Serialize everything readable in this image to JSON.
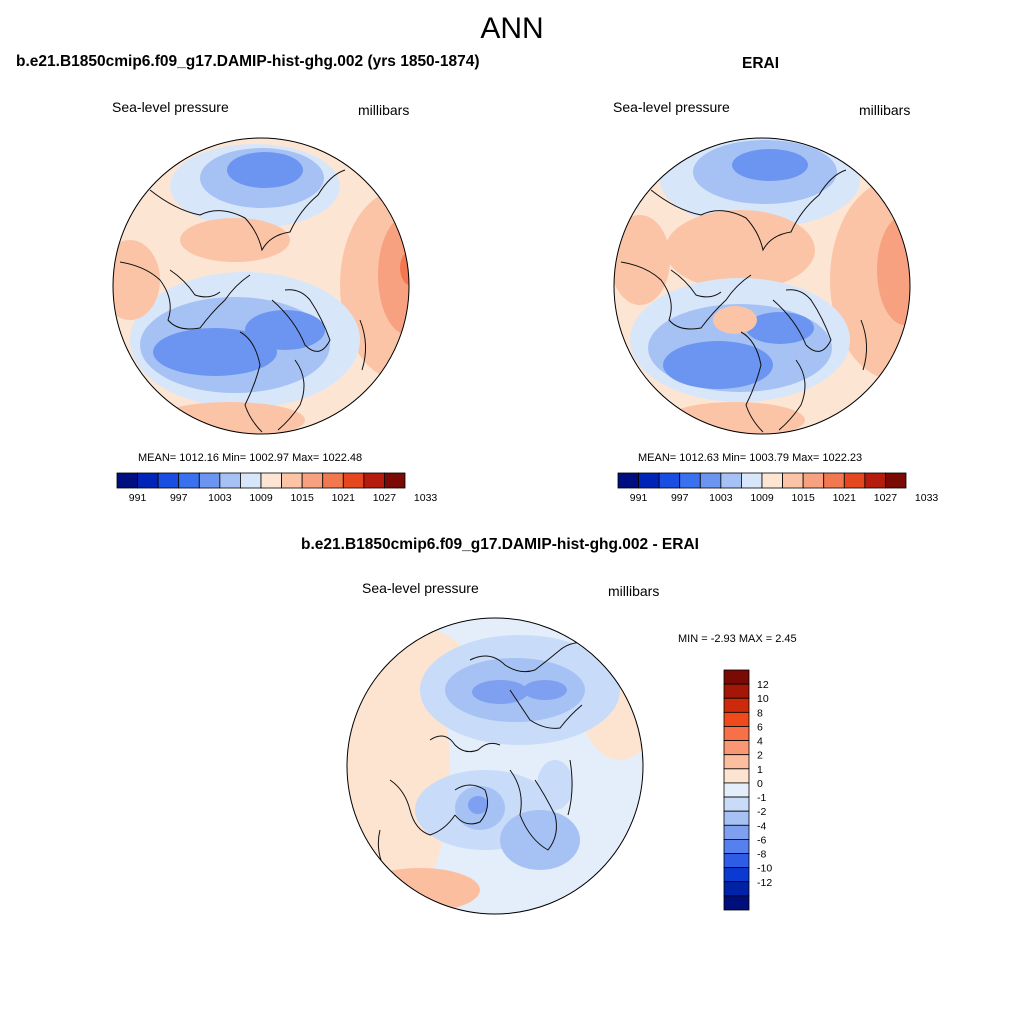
{
  "figure": {
    "season": "ANN"
  },
  "panels": [
    {
      "title": "b.e21.B1850cmip6.f09_g17.DAMIP-hist-ghg.002 (yrs 1850-1874)",
      "variable": "Sea-level pressure",
      "units": "millibars",
      "stats": "MEAN= 1012.16  Min= 1002.97  Max= 1022.48"
    },
    {
      "title": "ERAI",
      "variable": "Sea-level pressure",
      "units": "millibars",
      "stats": "MEAN= 1012.63  Min= 1003.79  Max= 1022.23"
    },
    {
      "title": "b.e21.B1850cmip6.f09_g17.DAMIP-hist-ghg.002 - ERAI",
      "variable": "Sea-level pressure",
      "units": "millibars",
      "stats": "MIN =  -2.93 MAX =   2.45"
    }
  ],
  "colorbar_horizontal": {
    "colors": [
      "#000f7f",
      "#0024b8",
      "#1a4ee3",
      "#3a71ef",
      "#6b95f0",
      "#a6c2f5",
      "#d8e6fa",
      "#fde5d4",
      "#fbc4a6",
      "#f8a180",
      "#f2784f",
      "#e5481f",
      "#b51c0d",
      "#7a0a04"
    ],
    "tick_labels": [
      "991",
      "997",
      "1003",
      "1009",
      "1015",
      "1021",
      "1027",
      "1033"
    ]
  },
  "colorbar_vertical": {
    "colors": [
      "#7a0a04",
      "#a41707",
      "#cd2a0b",
      "#ee4a1c",
      "#f77047",
      "#f99673",
      "#fbbfa0",
      "#fde4d0",
      "#e4eefb",
      "#c8dbf8",
      "#a6c2f4",
      "#7f9ff0",
      "#5680ed",
      "#2e5ce6",
      "#0a3ad2",
      "#0022a6",
      "#000e7b"
    ],
    "tick_labels": [
      "12",
      "10",
      "8",
      "6",
      "4",
      "2",
      "1",
      "0",
      "-1",
      "-2",
      "-4",
      "-6",
      "-8",
      "-10",
      "-12"
    ]
  }
}
